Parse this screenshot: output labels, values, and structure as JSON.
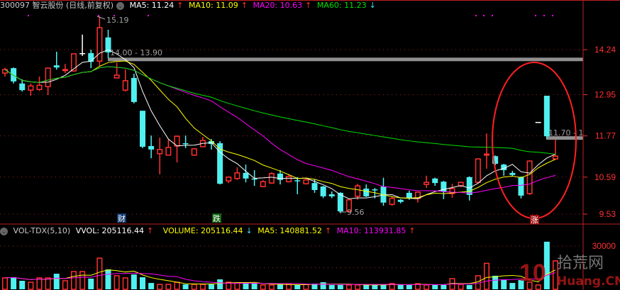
{
  "header": {
    "symbol": "300097 智云股份 (日线,前复权)",
    "ma5": "MA5: 11.24",
    "ma10": "MA10: 11.09",
    "ma20": "MA20: 10.63",
    "ma60": "MA60: 11.23",
    "arrow_up": "↑",
    "arrow_down": "↓"
  },
  "volume_header": {
    "indicator": "VOL-TDX(5,10)",
    "vvol": "VVOL: 205116.44",
    "volume": "VOLUME: 205116.44",
    "ma5": "MA5: 140881.52",
    "ma10": "MA10: 113931.85"
  },
  "colors": {
    "up": "#ff3030",
    "down": "#50f0f0",
    "ma5": "#ffffff",
    "ma10": "#ffff00",
    "ma20": "#ff00ff",
    "ma60": "#00e000",
    "grid": "#a02020",
    "range_bar": "#909090"
  },
  "annotations": {
    "high_label": "15.19",
    "low_label": "9.56",
    "range1": "14.00 - 13.90",
    "range2": "11.70 - 1",
    "event_cai": "财",
    "event_die": "跌",
    "event_zhang": "涨"
  },
  "watermark": {
    "text_cn": "拾荒网",
    "text_en": "10Huang.CN"
  },
  "chart_data": [
    {
      "type": "candlestick",
      "title": "300097 智云股份 (日线,前复权)",
      "yaxis_ticks": [
        14.24,
        12.95,
        11.77,
        10.59,
        9.53
      ],
      "ylim": [
        9.3,
        15.3
      ],
      "ohlc": [
        [
          13.57,
          13.72,
          13.47,
          13.67
        ],
        [
          13.71,
          13.73,
          13.27,
          13.33
        ],
        [
          13.27,
          13.39,
          13.04,
          13.08
        ],
        [
          13.08,
          13.27,
          12.92,
          13.2
        ],
        [
          13.1,
          13.47,
          13.06,
          13.22
        ],
        [
          13.18,
          13.73,
          12.94,
          13.71
        ],
        [
          13.79,
          14.18,
          13.67,
          13.73
        ],
        [
          13.65,
          13.83,
          13.57,
          13.67
        ],
        [
          13.63,
          14.12,
          13.61,
          14.12
        ],
        [
          14.14,
          14.67,
          14.06,
          14.14
        ],
        [
          14.14,
          14.24,
          13.71,
          13.89
        ],
        [
          13.91,
          15.19,
          13.77,
          14.87
        ],
        [
          14.59,
          14.81,
          14.0,
          14.16
        ],
        [
          13.43,
          13.87,
          13.43,
          13.51
        ],
        [
          13.08,
          13.67,
          13.04,
          13.35
        ],
        [
          13.43,
          13.55,
          12.7,
          12.74
        ],
        [
          12.49,
          12.49,
          11.42,
          11.46
        ],
        [
          11.48,
          11.78,
          11.13,
          11.38
        ],
        [
          11.26,
          11.72,
          10.67,
          11.38
        ],
        [
          11.22,
          11.68,
          11.22,
          11.44
        ],
        [
          11.48,
          11.78,
          11.01,
          11.76
        ],
        [
          11.56,
          11.78,
          11.42,
          11.54
        ],
        [
          11.22,
          11.42,
          11.2,
          11.4
        ],
        [
          11.46,
          11.74,
          11.46,
          11.64
        ],
        [
          11.62,
          11.68,
          11.38,
          11.54
        ],
        [
          11.56,
          11.62,
          10.38,
          10.4
        ],
        [
          10.48,
          10.61,
          10.42,
          10.59
        ],
        [
          10.55,
          10.87,
          10.51,
          10.71
        ],
        [
          10.71,
          10.95,
          10.44,
          10.55
        ],
        [
          10.55,
          10.79,
          10.34,
          10.53
        ],
        [
          10.32,
          10.5,
          10.3,
          10.46
        ],
        [
          10.42,
          10.73,
          10.4,
          10.69
        ],
        [
          10.69,
          10.79,
          10.38,
          10.51
        ],
        [
          10.46,
          10.67,
          10.44,
          10.61
        ],
        [
          10.5,
          10.59,
          10.1,
          10.48
        ],
        [
          10.4,
          10.55,
          10.38,
          10.51
        ],
        [
          10.42,
          10.53,
          10.14,
          10.22
        ],
        [
          10.32,
          10.34,
          9.99,
          10.04
        ],
        [
          10.1,
          10.18,
          9.99,
          10.04
        ],
        [
          10.14,
          10.16,
          9.56,
          9.61
        ],
        [
          9.61,
          9.94,
          9.59,
          9.94
        ],
        [
          10.04,
          10.4,
          9.94,
          10.34
        ],
        [
          10.26,
          10.38,
          10.02,
          10.04
        ],
        [
          10.24,
          10.28,
          9.98,
          10.22
        ],
        [
          10.32,
          10.57,
          9.77,
          9.86
        ],
        [
          9.81,
          10.04,
          9.77,
          9.98
        ],
        [
          9.94,
          9.96,
          9.84,
          9.88
        ],
        [
          10.14,
          10.2,
          9.94,
          9.98
        ],
        [
          9.98,
          10.18,
          9.86,
          10.16
        ],
        [
          10.38,
          10.63,
          10.28,
          10.44
        ],
        [
          10.55,
          10.57,
          10.34,
          10.42
        ],
        [
          10.46,
          10.48,
          9.96,
          10.18
        ],
        [
          10.12,
          10.4,
          10.0,
          10.26
        ],
        [
          10.34,
          10.46,
          10.3,
          10.44
        ],
        [
          10.59,
          10.61,
          9.92,
          10.08
        ],
        [
          10.44,
          11.13,
          10.4,
          11.11
        ],
        [
          11.23,
          11.84,
          10.83,
          11.25
        ],
        [
          11.19,
          11.21,
          10.93,
          10.97
        ],
        [
          10.95,
          10.97,
          10.63,
          10.79
        ],
        [
          10.71,
          10.77,
          10.61,
          10.65
        ],
        [
          10.59,
          10.61,
          9.98,
          10.06
        ],
        [
          10.12,
          11.07,
          10.08,
          11.05
        ],
        [
          12.17,
          12.17,
          12.17,
          12.17
        ],
        [
          12.92,
          12.92,
          11.7,
          11.76
        ],
        [
          11.11,
          11.66,
          11.09,
          11.19
        ]
      ],
      "ma_periods": [
        5,
        10,
        20,
        60
      ],
      "ranges": [
        {
          "label": "14.00 - 13.90",
          "price": 13.95
        },
        {
          "label": "11.70 - 1",
          "price": 11.7
        }
      ]
    },
    {
      "type": "bar",
      "title": "VOL-TDX(5,10)",
      "yaxis_ticks": [
        30000
      ],
      "ylim": [
        0,
        37000
      ],
      "values": [
        7900,
        8400,
        5900,
        4900,
        7900,
        7900,
        10800,
        5900,
        12300,
        12300,
        7400,
        21600,
        13800,
        9400,
        7900,
        10300,
        8400,
        4400,
        3400,
        3400,
        4900,
        3400,
        3400,
        3400,
        3400,
        6900,
        4900,
        4400,
        3900,
        3900,
        3000,
        3000,
        3400,
        3400,
        3000,
        3400,
        3900,
        4900,
        3000,
        3000,
        3000,
        3000,
        3000,
        3400,
        3000,
        4000,
        3000,
        3000,
        3900,
        3000,
        3000,
        3000,
        7400,
        3400,
        3000,
        9400,
        18000,
        9400,
        6900,
        4400,
        6400,
        5000,
        3000,
        33000,
        19700
      ]
    }
  ]
}
